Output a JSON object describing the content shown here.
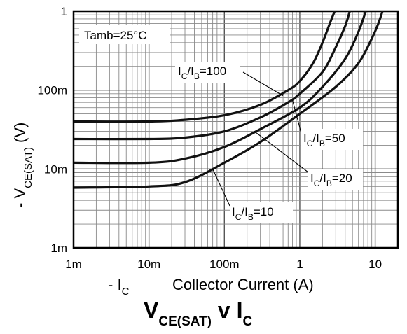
{
  "chart_data": {
    "type": "line",
    "title": "V",
    "title_sub": "CE(SAT)",
    "title_mid": " v I",
    "title_sub2": "C",
    "xlabel": "- I",
    "xlabel_sub": "C",
    "xlabel_rest": "Collector Current (A)",
    "ylabel": "- V",
    "ylabel_sub": "CE(SAT)",
    "ylabel_rest": "(V)",
    "x_scale": "log",
    "y_scale": "log",
    "xlim": [
      0.001,
      20
    ],
    "ylim": [
      0.001,
      1
    ],
    "grid": true,
    "x_ticks": [
      {
        "value": 0.001,
        "label": "1m"
      },
      {
        "value": 0.01,
        "label": "10m"
      },
      {
        "value": 0.1,
        "label": "100m"
      },
      {
        "value": 1,
        "label": "1"
      },
      {
        "value": 10,
        "label": "10"
      }
    ],
    "y_ticks": [
      {
        "value": 0.001,
        "label": "1m"
      },
      {
        "value": 0.01,
        "label": "10m"
      },
      {
        "value": 0.1,
        "label": "100m"
      },
      {
        "value": 1,
        "label": "1"
      }
    ],
    "annotation": "Tamb=25°C",
    "series": [
      {
        "label_main": "I",
        "label_sub1": "C",
        "label_mid": "/I",
        "label_sub2": "B",
        "label_val": "=100",
        "points": [
          [
            0.001,
            0.04
          ],
          [
            0.01,
            0.04
          ],
          [
            0.03,
            0.042
          ],
          [
            0.1,
            0.048
          ],
          [
            0.3,
            0.065
          ],
          [
            0.7,
            0.1
          ],
          [
            1,
            0.13
          ],
          [
            1.5,
            0.22
          ],
          [
            2,
            0.4
          ],
          [
            2.5,
            0.7
          ],
          [
            2.9,
            1.0
          ]
        ]
      },
      {
        "label_main": "I",
        "label_sub1": "C",
        "label_mid": "/I",
        "label_sub2": "B",
        "label_val": "=50",
        "points": [
          [
            0.001,
            0.024
          ],
          [
            0.01,
            0.024
          ],
          [
            0.03,
            0.025
          ],
          [
            0.1,
            0.03
          ],
          [
            0.3,
            0.045
          ],
          [
            0.7,
            0.07
          ],
          [
            1,
            0.09
          ],
          [
            2,
            0.17
          ],
          [
            3,
            0.35
          ],
          [
            4,
            0.65
          ],
          [
            4.6,
            1.0
          ]
        ]
      },
      {
        "label_main": "I",
        "label_sub1": "C",
        "label_mid": "/I",
        "label_sub2": "B",
        "label_val": "=20",
        "points": [
          [
            0.001,
            0.012
          ],
          [
            0.01,
            0.012
          ],
          [
            0.03,
            0.0135
          ],
          [
            0.1,
            0.019
          ],
          [
            0.3,
            0.032
          ],
          [
            1,
            0.06
          ],
          [
            2,
            0.11
          ],
          [
            4,
            0.25
          ],
          [
            6,
            0.55
          ],
          [
            7.5,
            1.0
          ]
        ]
      },
      {
        "label_main": "I",
        "label_sub1": "C",
        "label_mid": "/I",
        "label_sub2": "B",
        "label_val": "=10",
        "points": [
          [
            0.001,
            0.0058
          ],
          [
            0.01,
            0.006
          ],
          [
            0.03,
            0.0068
          ],
          [
            0.1,
            0.012
          ],
          [
            0.3,
            0.022
          ],
          [
            1,
            0.05
          ],
          [
            3,
            0.11
          ],
          [
            6,
            0.22
          ],
          [
            9,
            0.45
          ],
          [
            11,
            0.7
          ],
          [
            12.5,
            1.0
          ]
        ]
      }
    ]
  }
}
